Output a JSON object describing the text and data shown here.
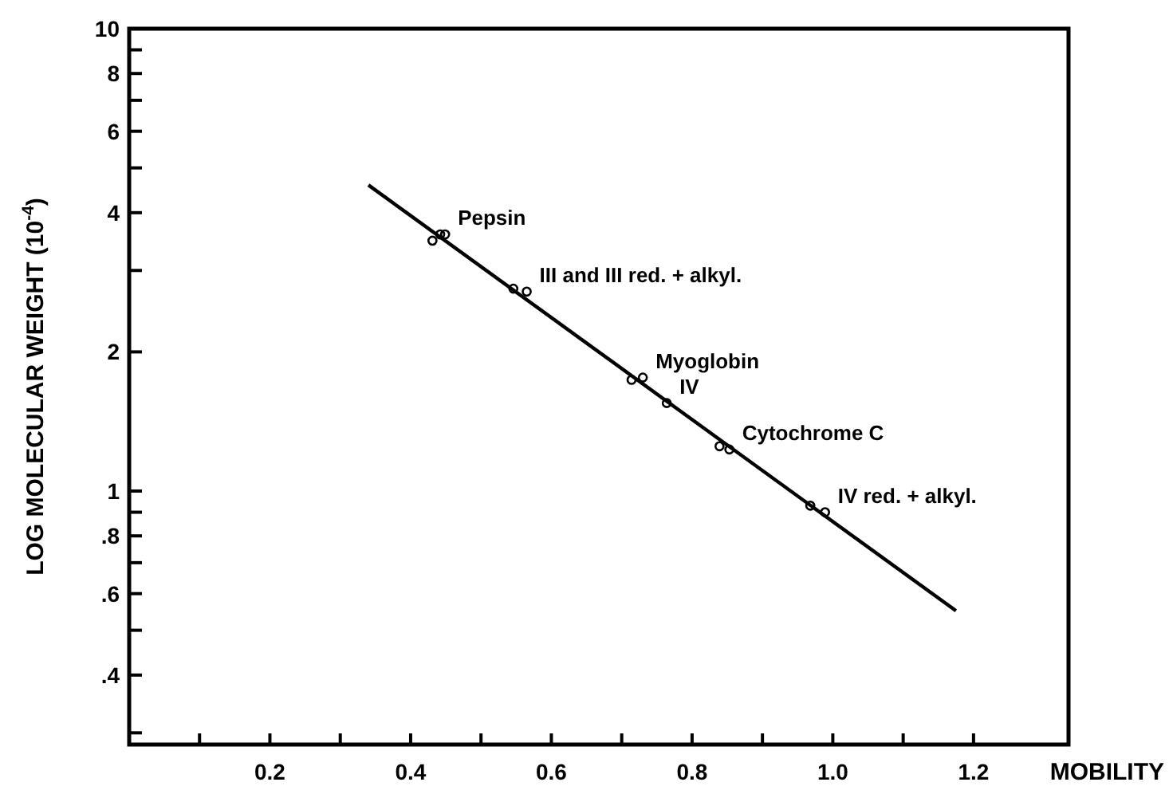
{
  "chart_data": {
    "type": "scatter",
    "xlabel": "MOBILITY",
    "ylabel": "LOG MOLECULAR WEIGHT (10$^{-4}$)",
    "log": "y",
    "grid": false,
    "xlim": [
      0,
      1.335
    ],
    "ylim": [
      0.283,
      10
    ],
    "xticks": [
      {
        "value": 0.1,
        "label": null
      },
      0.2,
      {
        "value": 0.3,
        "label": null
      },
      0.4,
      {
        "value": 0.5,
        "label": null
      },
      0.6,
      {
        "value": 0.7,
        "label": null
      },
      0.8,
      {
        "value": 0.9,
        "label": null
      },
      {
        "value": 1,
        "label": "1.0"
      },
      {
        "value": 1.1,
        "label": null
      },
      1.2
    ],
    "yticks": [
      {
        "value": 0.3,
        "label": null
      },
      {
        "value": 0.4,
        "label": ".4"
      },
      {
        "value": 0.5,
        "label": null
      },
      {
        "value": 0.6,
        "label": ".6"
      },
      {
        "value": 0.7,
        "label": null
      },
      {
        "value": 0.8,
        "label": ".8"
      },
      {
        "value": 0.9,
        "label": null
      },
      1,
      2,
      {
        "value": 3,
        "label": null
      },
      4,
      {
        "value": 5,
        "label": null
      },
      6,
      {
        "value": 7,
        "label": null
      },
      8,
      {
        "value": 9,
        "label": null
      },
      10
    ],
    "series": [
      {
        "color": "#000000",
        "marker": "circle",
        "x": [
          0.431,
          0.442,
          0.449,
          0.546,
          0.565,
          0.714,
          0.73,
          0.764,
          0.839,
          0.853,
          0.968,
          0.989
        ],
        "values": [
          3.48,
          3.59,
          3.59,
          2.74,
          2.7,
          1.74,
          1.76,
          1.55,
          1.25,
          1.23,
          0.93,
          0.9
        ]
      },
      {
        "type": "line",
        "color": "#000000",
        "marker": "none",
        "line_style": "solid",
        "x": [
          0.34,
          1.175
        ],
        "values": [
          4.59,
          0.551
        ]
      }
    ],
    "annotations": [
      {
        "text": "Pepsin",
        "x": 0.449,
        "y": 3.59
      },
      {
        "text": "III and III red. + alkyl.",
        "x": 0.565,
        "y": 2.7
      },
      {
        "text": "Myoglobin",
        "x": 0.73,
        "y": 1.76
      },
      {
        "text": "IV",
        "x": 0.764,
        "y": 1.55
      },
      {
        "text": "Cytochrome C",
        "x": 0.853,
        "y": 1.23
      },
      {
        "text": "IV red. + alkyl.",
        "x": 0.989,
        "y": 0.9
      }
    ]
  }
}
